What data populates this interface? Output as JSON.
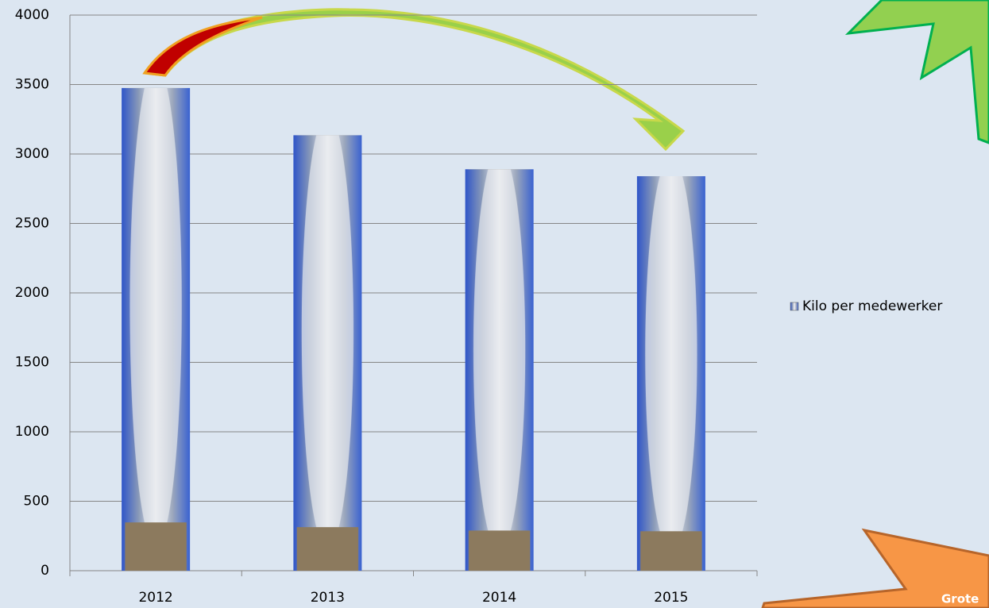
{
  "chart_data": {
    "type": "bar",
    "categories": [
      "2012",
      "2013",
      "2014",
      "2015"
    ],
    "series": [
      {
        "name": "Kilo per medewerker",
        "color": "#3a5fcd",
        "values": [
          3475,
          3135,
          2890,
          2840
        ]
      }
    ],
    "ylim": [
      0,
      4000
    ],
    "yticks": [
      0,
      500,
      1000,
      1500,
      2000,
      2500,
      3000,
      3500,
      4000
    ],
    "grid": true,
    "legend": "right",
    "annotations": [
      "Grote"
    ]
  }
}
